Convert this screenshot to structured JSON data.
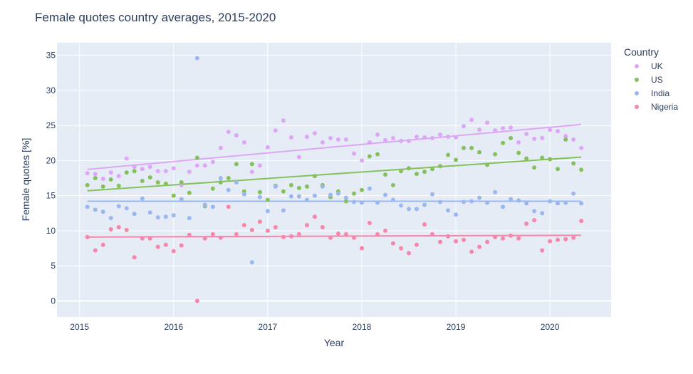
{
  "chart_data": {
    "type": "scatter",
    "title": "Female quotes country averages, 2015-2020",
    "xlabel": "Year",
    "ylabel": "Female quotes [%]",
    "xlim": [
      2014.76,
      2020.65
    ],
    "ylim": [
      -2.3,
      36.8
    ],
    "x_ticks": [
      2015,
      2016,
      2017,
      2018,
      2019,
      2020
    ],
    "x_tick_labels": [
      "2015",
      "2016",
      "2017",
      "2018",
      "2019",
      "2020"
    ],
    "y_ticks": [
      0,
      5,
      10,
      15,
      20,
      25,
      30,
      35
    ],
    "y_tick_labels": [
      "0",
      "5",
      "10",
      "15",
      "20",
      "25",
      "30",
      "35"
    ],
    "grid": true,
    "legend_title": "Country",
    "legend_position": "right",
    "series": [
      {
        "name": "UK",
        "color": "#dda7f5",
        "x": [
          2015.083,
          2015.167,
          2015.25,
          2015.333,
          2015.417,
          2015.5,
          2015.583,
          2015.667,
          2015.75,
          2015.833,
          2015.917,
          2016.0,
          2016.083,
          2016.167,
          2016.25,
          2016.333,
          2016.417,
          2016.5,
          2016.583,
          2016.667,
          2016.75,
          2016.833,
          2016.917,
          2017.0,
          2017.083,
          2017.167,
          2017.25,
          2017.333,
          2017.417,
          2017.5,
          2017.583,
          2017.667,
          2017.75,
          2017.833,
          2017.917,
          2018.0,
          2018.083,
          2018.167,
          2018.25,
          2018.333,
          2018.417,
          2018.5,
          2018.583,
          2018.667,
          2018.75,
          2018.833,
          2018.917,
          2019.0,
          2019.083,
          2019.167,
          2019.25,
          2019.333,
          2019.417,
          2019.5,
          2019.583,
          2019.667,
          2019.75,
          2019.833,
          2019.917,
          2020.0,
          2020.083,
          2020.167,
          2020.25,
          2020.333
        ],
        "y": [
          18.2,
          18.1,
          17.4,
          18.3,
          17.8,
          20.3,
          19.1,
          18.8,
          19.1,
          18.5,
          18.5,
          18.9,
          16.5,
          18.4,
          19.3,
          19.3,
          19.8,
          21.8,
          24.1,
          23.6,
          22.6,
          18.4,
          19.3,
          21.9,
          24.3,
          25.7,
          23.3,
          20.5,
          23.4,
          23.9,
          22.6,
          23.2,
          23.0,
          23.0,
          21.0,
          20.0,
          22.6,
          23.7,
          22.9,
          23.2,
          22.8,
          22.8,
          23.4,
          23.3,
          23.2,
          23.7,
          23.4,
          23.3,
          24.9,
          25.8,
          24.4,
          25.4,
          24.3,
          24.6,
          24.7,
          22.6,
          23.8,
          23.1,
          23.2,
          24.4,
          24.2,
          23.5,
          23.0,
          21.8
        ],
        "trend": [
          18.75,
          25.15
        ]
      },
      {
        "name": "US",
        "color": "#84c15b",
        "x": [
          2015.083,
          2015.167,
          2015.25,
          2015.333,
          2015.417,
          2015.5,
          2015.583,
          2015.667,
          2015.75,
          2015.833,
          2015.917,
          2016.0,
          2016.083,
          2016.167,
          2016.25,
          2016.333,
          2016.417,
          2016.5,
          2016.583,
          2016.667,
          2016.75,
          2016.833,
          2016.917,
          2017.0,
          2017.083,
          2017.167,
          2017.25,
          2017.333,
          2017.417,
          2017.5,
          2017.583,
          2017.667,
          2017.75,
          2017.833,
          2017.917,
          2018.0,
          2018.083,
          2018.167,
          2018.25,
          2018.333,
          2018.417,
          2018.5,
          2018.583,
          2018.667,
          2018.75,
          2018.833,
          2018.917,
          2019.0,
          2019.083,
          2019.167,
          2019.25,
          2019.333,
          2019.417,
          2019.5,
          2019.583,
          2019.667,
          2019.75,
          2019.833,
          2019.917,
          2020.0,
          2020.083,
          2020.167,
          2020.25,
          2020.333
        ],
        "y": [
          16.5,
          17.5,
          16.3,
          17.3,
          16.4,
          18.3,
          18.5,
          17.1,
          17.6,
          16.9,
          16.7,
          15.0,
          16.9,
          15.4,
          20.4,
          13.5,
          16.0,
          16.9,
          17.5,
          19.5,
          15.6,
          19.5,
          15.5,
          14.4,
          16.4,
          15.6,
          16.5,
          16.1,
          16.3,
          17.8,
          16.5,
          14.8,
          15.6,
          14.2,
          15.3,
          15.8,
          20.6,
          20.9,
          18.0,
          16.5,
          18.5,
          18.9,
          18.1,
          18.4,
          18.8,
          19.2,
          20.8,
          20.1,
          21.8,
          21.8,
          21.2,
          19.4,
          20.9,
          22.5,
          23.2,
          21.1,
          20.3,
          19.0,
          20.4,
          20.2,
          18.8,
          23.0,
          19.6,
          18.7
        ],
        "trend": [
          15.7,
          20.5
        ]
      },
      {
        "name": "India",
        "color": "#9ab7f0",
        "x": [
          2015.083,
          2015.167,
          2015.25,
          2015.333,
          2015.417,
          2015.5,
          2015.583,
          2015.667,
          2015.75,
          2015.833,
          2015.917,
          2016.0,
          2016.083,
          2016.167,
          2016.25,
          2016.333,
          2016.417,
          2016.5,
          2016.583,
          2016.667,
          2016.75,
          2016.833,
          2016.917,
          2017.0,
          2017.083,
          2017.167,
          2017.25,
          2017.333,
          2017.417,
          2017.5,
          2017.583,
          2017.667,
          2017.75,
          2017.833,
          2017.917,
          2018.0,
          2018.083,
          2018.167,
          2018.25,
          2018.333,
          2018.417,
          2018.5,
          2018.583,
          2018.667,
          2018.75,
          2018.833,
          2018.917,
          2019.0,
          2019.083,
          2019.167,
          2019.25,
          2019.333,
          2019.417,
          2019.5,
          2019.583,
          2019.667,
          2019.75,
          2019.833,
          2019.917,
          2020.0,
          2020.083,
          2020.167,
          2020.25,
          2020.333
        ],
        "y": [
          13.4,
          13.0,
          12.7,
          11.8,
          13.5,
          13.2,
          12.4,
          14.6,
          12.6,
          11.9,
          12.0,
          12.2,
          14.5,
          11.8,
          34.6,
          13.7,
          13.4,
          17.5,
          15.8,
          16.9,
          15.2,
          5.5,
          14.8,
          12.8,
          16.3,
          12.9,
          14.9,
          14.9,
          14.4,
          15.0,
          16.3,
          15.1,
          15.3,
          14.7,
          14.1,
          14.0,
          16.0,
          14.0,
          15.1,
          14.4,
          13.6,
          13.1,
          13.1,
          13.7,
          15.2,
          14.1,
          12.9,
          12.3,
          14.1,
          14.2,
          14.7,
          14.0,
          15.5,
          13.4,
          14.5,
          14.3,
          13.9,
          12.8,
          12.5,
          14.2,
          13.9,
          14.0,
          15.3,
          13.9
        ],
        "trend": [
          14.2,
          14.2
        ]
      },
      {
        "name": "Nigeria",
        "color": "#f786aa",
        "x": [
          2015.083,
          2015.167,
          2015.25,
          2015.333,
          2015.417,
          2015.5,
          2015.583,
          2015.667,
          2015.75,
          2015.833,
          2015.917,
          2016.0,
          2016.083,
          2016.167,
          2016.25,
          2016.333,
          2016.417,
          2016.5,
          2016.583,
          2016.667,
          2016.75,
          2016.833,
          2016.917,
          2017.0,
          2017.083,
          2017.167,
          2017.25,
          2017.333,
          2017.417,
          2017.5,
          2017.583,
          2017.667,
          2017.75,
          2017.833,
          2017.917,
          2018.0,
          2018.083,
          2018.167,
          2018.25,
          2018.333,
          2018.417,
          2018.5,
          2018.583,
          2018.667,
          2018.75,
          2018.833,
          2018.917,
          2019.0,
          2019.083,
          2019.167,
          2019.25,
          2019.333,
          2019.417,
          2019.5,
          2019.583,
          2019.667,
          2019.75,
          2019.833,
          2019.917,
          2020.0,
          2020.083,
          2020.167,
          2020.25,
          2020.333
        ],
        "y": [
          9.1,
          7.2,
          8.0,
          10.2,
          10.5,
          10.1,
          6.2,
          8.9,
          8.9,
          7.7,
          8.0,
          7.1,
          7.9,
          9.4,
          0.0,
          8.9,
          9.5,
          9.0,
          13.4,
          9.5,
          10.8,
          10.1,
          11.3,
          10.0,
          10.5,
          9.1,
          9.2,
          9.5,
          10.8,
          12.0,
          10.5,
          9.0,
          9.6,
          9.5,
          9.0,
          7.5,
          11.1,
          9.5,
          10.0,
          8.2,
          7.5,
          6.8,
          8.0,
          10.9,
          9.5,
          8.4,
          9.2,
          8.5,
          8.7,
          7.0,
          7.7,
          8.4,
          9.1,
          8.9,
          9.3,
          8.9,
          11.0,
          11.5,
          7.2,
          8.5,
          8.7,
          8.8,
          9.0,
          11.4
        ],
        "trend": [
          9.1,
          9.35
        ]
      }
    ]
  }
}
